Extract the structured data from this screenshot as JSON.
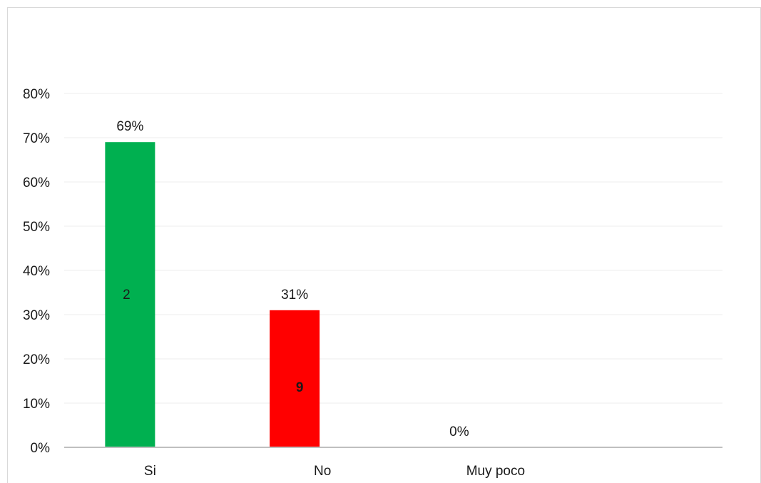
{
  "chart_data": {
    "type": "bar",
    "categories": [
      "Si",
      "No",
      "Muy poco"
    ],
    "values": [
      69,
      31,
      0
    ],
    "value_labels": [
      "69%",
      "31%",
      "0%"
    ],
    "inner_labels": [
      "2",
      "9",
      ""
    ],
    "colors": [
      "#00b050",
      "#ff0000",
      "#7f7f7f"
    ],
    "yticks": [
      "0%",
      "10%",
      "20%",
      "30%",
      "40%",
      "50%",
      "60%",
      "70%",
      "80%"
    ],
    "ylim": [
      0,
      80
    ],
    "grid": true,
    "legend": "none"
  }
}
